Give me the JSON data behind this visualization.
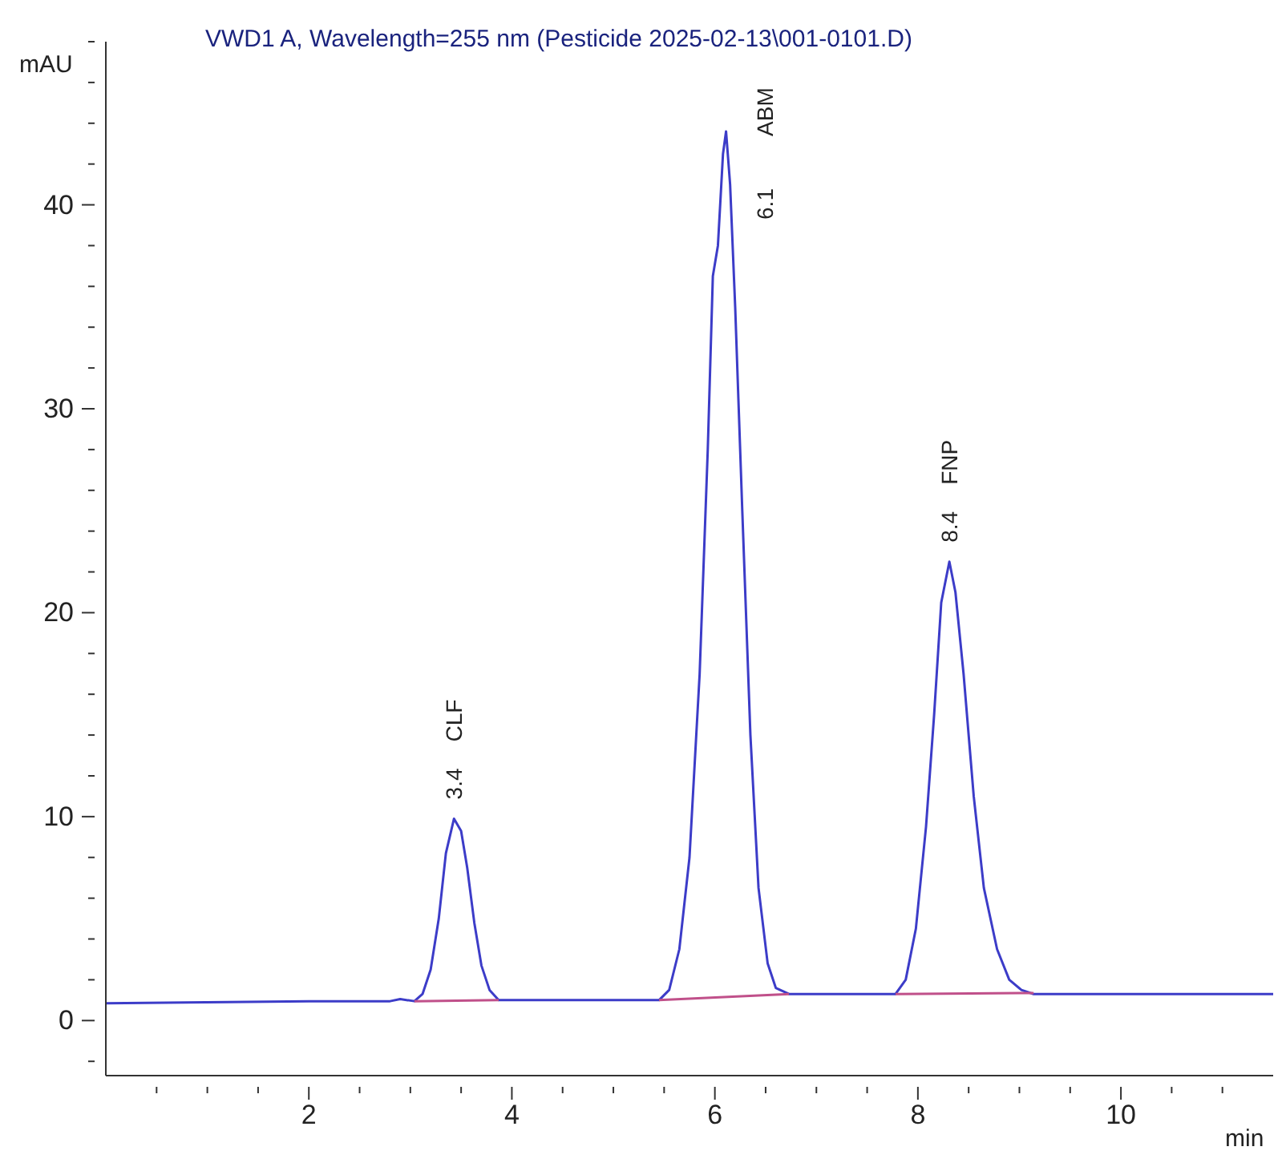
{
  "chart_data": {
    "type": "line",
    "title": "VWD1 A, Wavelength=255 nm (Pesticide 2025-02-13\\001-0101.D)",
    "xlabel": "min",
    "ylabel": "mAU",
    "xlim": [
      0,
      11.5
    ],
    "xticks": [
      {
        "value": 0.5,
        "label": null
      },
      {
        "value": 1,
        "label": null
      },
      {
        "value": 1.5,
        "label": null
      },
      2,
      {
        "value": 2.5,
        "label": null
      },
      {
        "value": 3,
        "label": null
      },
      {
        "value": 3.5,
        "label": null
      },
      4,
      {
        "value": 4.5,
        "label": null
      },
      {
        "value": 5,
        "label": null
      },
      {
        "value": 5.5,
        "label": null
      },
      6,
      {
        "value": 6.5,
        "label": null
      },
      {
        "value": 7,
        "label": null
      },
      {
        "value": 7.5,
        "label": null
      },
      8,
      {
        "value": 8.5,
        "label": null
      },
      {
        "value": 9,
        "label": null
      },
      {
        "value": 9.5,
        "label": null
      },
      10,
      {
        "value": 10.5,
        "label": null
      },
      {
        "value": 11,
        "label": null
      }
    ],
    "ylim": [
      -2.7,
      48
    ],
    "yticks": [
      {
        "value": -2,
        "label": null
      },
      0,
      {
        "value": 2,
        "label": null
      },
      {
        "value": 4,
        "label": null
      },
      {
        "value": 6,
        "label": null
      },
      {
        "value": 8,
        "label": null
      },
      10,
      {
        "value": 12,
        "label": null
      },
      {
        "value": 14,
        "label": null
      },
      {
        "value": 16,
        "label": null
      },
      {
        "value": 18,
        "label": null
      },
      20,
      {
        "value": 22,
        "label": null
      },
      {
        "value": 24,
        "label": null
      },
      {
        "value": 26,
        "label": null
      },
      {
        "value": 28,
        "label": null
      },
      30,
      {
        "value": 32,
        "label": null
      },
      {
        "value": 34,
        "label": null
      },
      {
        "value": 36,
        "label": null
      },
      {
        "value": 38,
        "label": null
      },
      40,
      {
        "value": 42,
        "label": null
      },
      {
        "value": 44,
        "label": null
      },
      {
        "value": 46,
        "label": null
      },
      {
        "value": 48,
        "label": null
      }
    ],
    "grid": false,
    "legend": false,
    "marker": "none",
    "line_style": "solid",
    "series": [
      {
        "color": "#3c3cc8",
        "x": [
          0,
          1,
          2,
          2.8,
          2.9,
          3.04,
          3.12,
          3.2,
          3.28,
          3.35,
          3.43,
          3.5,
          3.56,
          3.63,
          3.7,
          3.78,
          3.87,
          4.5,
          5.45,
          5.55,
          5.65,
          5.75,
          5.85,
          5.93,
          5.98,
          6.03,
          6.08,
          6.11,
          6.15,
          6.2,
          6.27,
          6.35,
          6.43,
          6.52,
          6.6,
          6.73,
          7.3,
          7.78,
          7.88,
          7.98,
          8.08,
          8.16,
          8.23,
          8.31,
          8.37,
          8.45,
          8.55,
          8.65,
          8.78,
          8.9,
          9.02,
          9.14,
          10,
          11.5
        ],
        "values": [
          0.85,
          0.9,
          0.95,
          0.95,
          1.05,
          0.95,
          1.3,
          2.5,
          5,
          8.2,
          9.9,
          9.3,
          7.5,
          4.8,
          2.7,
          1.5,
          1.0,
          1.0,
          1.0,
          1.5,
          3.5,
          8,
          17,
          28,
          36.5,
          38,
          42.5,
          43.6,
          41,
          35,
          25,
          14,
          6.5,
          2.8,
          1.6,
          1.3,
          1.3,
          1.3,
          2,
          4.5,
          9.5,
          15,
          20.5,
          22.5,
          21,
          17,
          11,
          6.5,
          3.5,
          2.0,
          1.5,
          1.3,
          1.3,
          1.3
        ]
      },
      {
        "color": "#c0508a",
        "x": [
          3.04,
          3.87,
          4.5,
          5.45,
          6.73,
          7.3,
          7.78,
          9.14
        ],
        "values": [
          0.95,
          1.0,
          null,
          1.0,
          1.3,
          null,
          1.3,
          1.35
        ]
      }
    ],
    "annotations": [
      {
        "text": "3.4",
        "x": 3.43,
        "y": 9.9
      },
      {
        "text": "6.1",
        "x": 6.11,
        "y": 43.6
      },
      {
        "text": "8.4",
        "x": 8.31,
        "y": 22.5
      },
      "CLF",
      "ABM",
      "FNP"
    ]
  }
}
